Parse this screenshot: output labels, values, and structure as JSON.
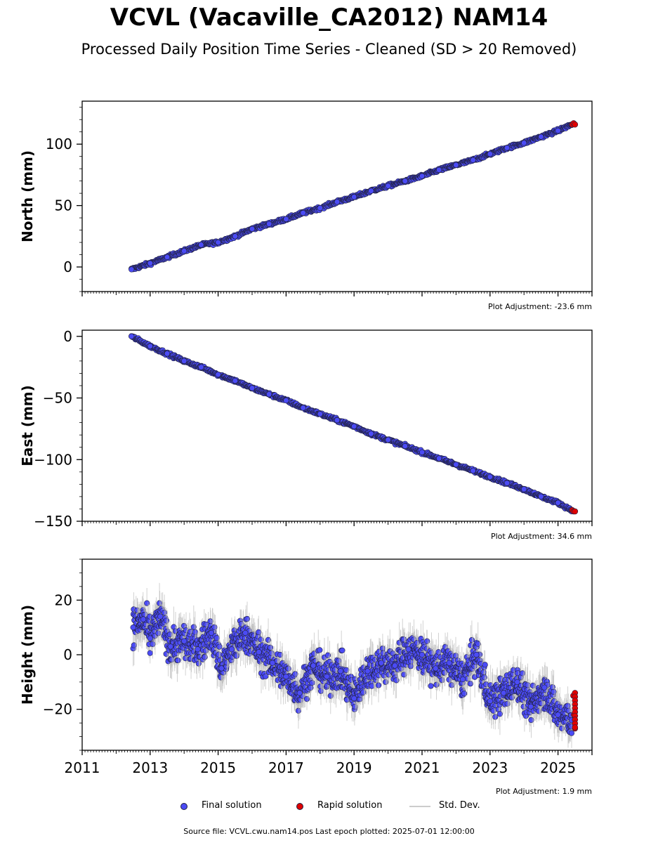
{
  "title": "VCVL (Vacaville_CA2012) NAM14",
  "subtitle": "Processed Daily Position Time Series - Cleaned (SD > 20 Removed)",
  "colors": {
    "final": "#4b4bf5",
    "rapid": "#e00000",
    "stddev": "#b4b4b4",
    "edge": "#222244"
  },
  "legend": {
    "final": "Final solution",
    "rapid": "Rapid solution",
    "stddev": "Std. Dev."
  },
  "footer": "Source file: VCVL.cwu.nam14.pos  Last epoch plotted: 2025-07-01 12:00:00",
  "chart_data": [
    {
      "type": "scatter",
      "ylabel": "North (mm)",
      "xlim": [
        2011,
        2026
      ],
      "ylim": [
        -20,
        135
      ],
      "yticks": [
        0,
        50,
        100
      ],
      "xticks": [],
      "adjustment": "Plot Adjustment: -23.6 mm",
      "series": [
        {
          "name": "Final solution",
          "x": [
            2012.45,
            2013.0,
            2013.5,
            2014.0,
            2014.5,
            2015.0,
            2015.5,
            2016.0,
            2016.5,
            2017.0,
            2017.5,
            2018.0,
            2018.5,
            2019.0,
            2019.5,
            2020.0,
            2020.5,
            2021.0,
            2021.5,
            2022.0,
            2022.5,
            2023.0,
            2023.5,
            2024.0,
            2024.5,
            2025.0,
            2025.4
          ],
          "y": [
            -2,
            3,
            8,
            13,
            18,
            20,
            25,
            31,
            35,
            39,
            44,
            48,
            53,
            57,
            62,
            66,
            70,
            74,
            79,
            83,
            87,
            92,
            97,
            101,
            106,
            111,
            116
          ]
        },
        {
          "name": "Rapid solution",
          "x": [
            2025.42,
            2025.46,
            2025.5
          ],
          "y": [
            116,
            117,
            116
          ]
        }
      ]
    },
    {
      "type": "scatter",
      "ylabel": "East (mm)",
      "xlim": [
        2011,
        2026
      ],
      "ylim": [
        -150,
        5
      ],
      "yticks": [
        0,
        -50,
        -100,
        -150
      ],
      "xticks": [],
      "adjustment": "Plot Adjustment: 34.6 mm",
      "series": [
        {
          "name": "Final solution",
          "x": [
            2012.45,
            2013.0,
            2013.5,
            2014.0,
            2014.5,
            2015.0,
            2015.5,
            2016.0,
            2016.5,
            2017.0,
            2017.5,
            2018.0,
            2018.5,
            2019.0,
            2019.5,
            2020.0,
            2020.5,
            2021.0,
            2021.5,
            2022.0,
            2022.5,
            2023.0,
            2023.5,
            2024.0,
            2024.5,
            2025.0,
            2025.4
          ],
          "y": [
            0,
            -8,
            -14,
            -20,
            -25,
            -31,
            -36,
            -42,
            -47,
            -52,
            -58,
            -63,
            -68,
            -73,
            -79,
            -84,
            -89,
            -94,
            -99,
            -104,
            -109,
            -114,
            -119,
            -124,
            -130,
            -135,
            -141
          ]
        },
        {
          "name": "Rapid solution",
          "x": [
            2025.42,
            2025.46,
            2025.5
          ],
          "y": [
            -141,
            -142,
            -142
          ]
        }
      ]
    },
    {
      "type": "scatter",
      "ylabel": "Height (mm)",
      "xlim": [
        2011,
        2026
      ],
      "ylim": [
        -35,
        35
      ],
      "yticks": [
        20,
        0,
        -20
      ],
      "xticks": [
        "2011",
        "2013",
        "2015",
        "2017",
        "2019",
        "2021",
        "2023",
        "2025"
      ],
      "adjustment": "Plot Adjustment: 1.9 mm",
      "series": [
        {
          "name": "Final solution",
          "x": [
            2012.5,
            2012.8,
            2013.0,
            2013.3,
            2013.6,
            2014.0,
            2014.4,
            2014.8,
            2015.1,
            2015.4,
            2015.8,
            2016.2,
            2016.6,
            2017.0,
            2017.4,
            2017.8,
            2018.2,
            2018.6,
            2019.0,
            2019.4,
            2019.8,
            2020.2,
            2020.6,
            2021.0,
            2021.4,
            2021.8,
            2022.2,
            2022.6,
            2023.0,
            2023.4,
            2023.8,
            2024.2,
            2024.6,
            2025.0,
            2025.4
          ],
          "y": [
            10,
            13,
            6,
            14,
            3,
            5,
            2,
            8,
            -5,
            2,
            8,
            1,
            -3,
            -8,
            -14,
            -4,
            -8,
            -6,
            -16,
            -6,
            -3,
            -4,
            2,
            0,
            -5,
            -3,
            -9,
            0,
            -17,
            -14,
            -10,
            -19,
            -12,
            -22,
            -24
          ]
        },
        {
          "name": "Rapid solution",
          "x": [
            2025.45,
            2025.47,
            2025.5
          ],
          "y": [
            -15,
            -22,
            -27
          ]
        }
      ]
    }
  ]
}
